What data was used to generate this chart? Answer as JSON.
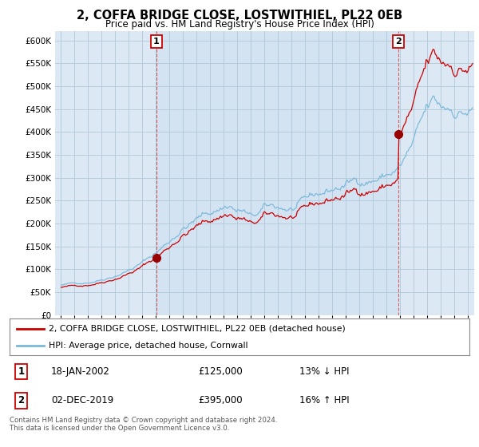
{
  "title": "2, COFFA BRIDGE CLOSE, LOSTWITHIEL, PL22 0EB",
  "subtitle": "Price paid vs. HM Land Registry's House Price Index (HPI)",
  "legend_line1": "2, COFFA BRIDGE CLOSE, LOSTWITHIEL, PL22 0EB (detached house)",
  "legend_line2": "HPI: Average price, detached house, Cornwall",
  "sale1_date_label": "18-JAN-2002",
  "sale1_price_label": "£125,000",
  "sale1_pct_label": "13% ↓ HPI",
  "sale2_date_label": "02-DEC-2019",
  "sale2_price_label": "£395,000",
  "sale2_pct_label": "16% ↑ HPI",
  "footer": "Contains HM Land Registry data © Crown copyright and database right 2024.\nThis data is licensed under the Open Government Licence v3.0.",
  "hpi_color": "#7ab8d9",
  "price_color": "#cc0000",
  "sale_marker_color": "#990000",
  "ylim_min": 0,
  "ylim_max": 620000,
  "ytick_step": 50000,
  "background_color": "#ffffff",
  "plot_bg_color": "#dce9f5",
  "grid_color": "#b0c8d8",
  "sale1_year": 2002.05,
  "sale1_price": 125000,
  "sale2_year": 2019.92,
  "sale2_price": 395000,
  "xmin": 1995.0,
  "xmax": 2025.5
}
